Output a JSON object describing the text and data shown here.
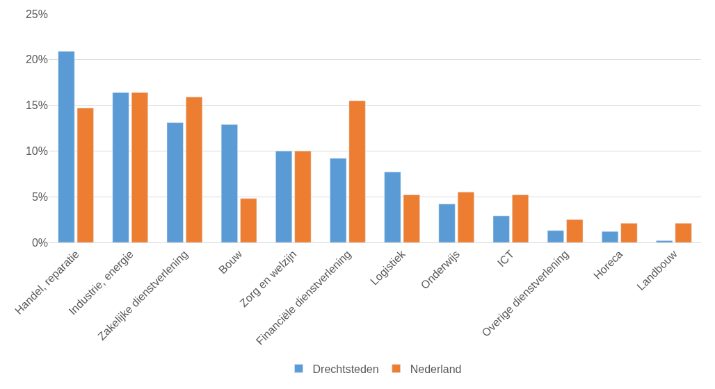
{
  "chart_data": {
    "type": "bar",
    "categories": [
      "Handel, reparatie",
      "Industrie, energie",
      "Zakelijke dienstverlening",
      "Bouw",
      "Zorg en welzijn",
      "Financiële dienstverlening",
      "Logistiek",
      "Onderwijs",
      "ICT",
      "Overige dienstverlening",
      "Horeca",
      "Landbouw"
    ],
    "series": [
      {
        "name": "Drechtsteden",
        "color": "#5b9bd5",
        "values": [
          20.9,
          16.4,
          13.1,
          12.9,
          10.0,
          9.2,
          7.7,
          4.2,
          2.9,
          1.3,
          1.2,
          0.2
        ]
      },
      {
        "name": "Nederland",
        "color": "#ed7d31",
        "values": [
          14.7,
          16.4,
          15.9,
          4.8,
          10.0,
          15.5,
          5.2,
          5.5,
          5.2,
          2.5,
          2.1,
          2.1
        ]
      }
    ],
    "ylim": [
      0,
      25
    ],
    "yticks": [
      {
        "value": 0,
        "label": "0%"
      },
      {
        "value": 5,
        "label": "5%"
      },
      {
        "value": 10,
        "label": "10%"
      },
      {
        "value": 15,
        "label": "15%"
      },
      {
        "value": 20,
        "label": "20%"
      },
      {
        "value": 25,
        "label": "25%"
      }
    ],
    "grid": "y",
    "legend": "bottom"
  }
}
